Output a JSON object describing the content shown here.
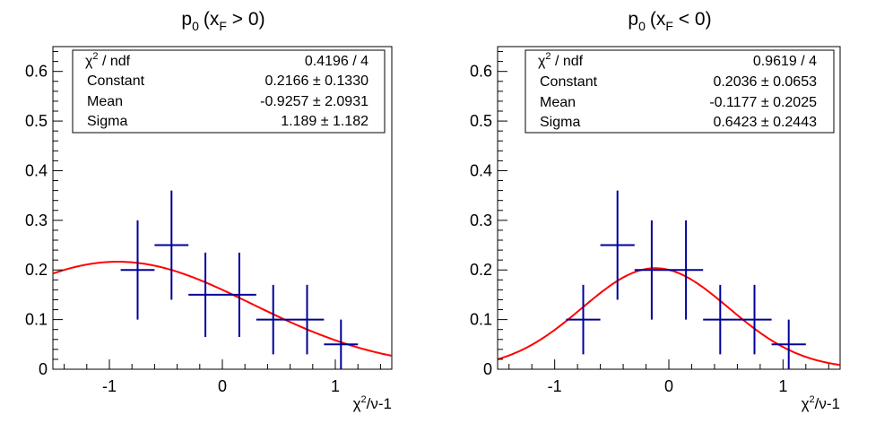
{
  "chart_data": [
    {
      "type": "scatter",
      "title": "p_0 (x_F > 0)",
      "title_main": "p",
      "title_sub": "0",
      "title_open": "(x",
      "title_sub2": "F",
      "title_close": " > 0)",
      "xlabel": "χ²/ν-1",
      "xlabel_main": "χ",
      "xlabel_sup": "2",
      "xlabel_rest": "/ν-1",
      "ylabel": "",
      "xlim": [
        -1.5,
        1.5
      ],
      "ylim": [
        0,
        0.65
      ],
      "x_ticks": [
        -1,
        0,
        1
      ],
      "x_tick_labels": [
        "-1",
        "0",
        "1"
      ],
      "y_ticks": [
        0,
        0.1,
        0.2,
        0.3,
        0.4,
        0.5,
        0.6
      ],
      "y_tick_labels": [
        "0",
        "0.1",
        "0.2",
        "0.3",
        "0.4",
        "0.5",
        "0.6"
      ],
      "grid": false,
      "points": [
        {
          "x": -0.75,
          "y": 0.2,
          "xerr": 0.15,
          "yerr": 0.1
        },
        {
          "x": -0.45,
          "y": 0.25,
          "xerr": 0.15,
          "yerr": 0.11
        },
        {
          "x": -0.15,
          "y": 0.15,
          "xerr": 0.15,
          "yerr": 0.085
        },
        {
          "x": 0.15,
          "y": 0.15,
          "xerr": 0.15,
          "yerr": 0.085
        },
        {
          "x": 0.45,
          "y": 0.1,
          "xerr": 0.15,
          "yerr": 0.07
        },
        {
          "x": 0.75,
          "y": 0.1,
          "xerr": 0.15,
          "yerr": 0.07
        },
        {
          "x": 1.05,
          "y": 0.05,
          "xerr": 0.15,
          "yerr": 0.05
        }
      ],
      "point_color": "#000099",
      "fit": {
        "function": "gaus",
        "constant": 0.2166,
        "mean": -0.9257,
        "sigma": 1.189,
        "color": "#ff0000"
      },
      "stats": {
        "legend_position": "top",
        "rows": [
          {
            "label": "χ² / ndf",
            "label_main": "χ",
            "label_sup": "2",
            "label_rest": " / ndf",
            "value": "0.4196 / 4"
          },
          {
            "label": "Constant",
            "value": "0.2166 ± 0.1330"
          },
          {
            "label": "Mean",
            "value": "-0.9257 ± 2.0931"
          },
          {
            "label": "Sigma",
            "value": "1.189 ± 1.182"
          }
        ]
      }
    },
    {
      "type": "scatter",
      "title": "p_0 (x_F < 0)",
      "title_main": "p",
      "title_sub": "0",
      "title_open": "(x",
      "title_sub2": "F",
      "title_close": " < 0)",
      "xlabel": "χ²/ν-1",
      "xlabel_main": "χ",
      "xlabel_sup": "2",
      "xlabel_rest": "/ν-1",
      "ylabel": "",
      "xlim": [
        -1.5,
        1.5
      ],
      "ylim": [
        0,
        0.65
      ],
      "x_ticks": [
        -1,
        0,
        1
      ],
      "x_tick_labels": [
        "-1",
        "0",
        "1"
      ],
      "y_ticks": [
        0,
        0.1,
        0.2,
        0.3,
        0.4,
        0.5,
        0.6
      ],
      "y_tick_labels": [
        "0",
        "0.1",
        "0.2",
        "0.3",
        "0.4",
        "0.5",
        "0.6"
      ],
      "grid": false,
      "points": [
        {
          "x": -0.75,
          "y": 0.1,
          "xerr": 0.15,
          "yerr": 0.07
        },
        {
          "x": -0.45,
          "y": 0.25,
          "xerr": 0.15,
          "yerr": 0.11
        },
        {
          "x": -0.15,
          "y": 0.2,
          "xerr": 0.15,
          "yerr": 0.1
        },
        {
          "x": 0.15,
          "y": 0.2,
          "xerr": 0.15,
          "yerr": 0.1
        },
        {
          "x": 0.45,
          "y": 0.1,
          "xerr": 0.15,
          "yerr": 0.07
        },
        {
          "x": 0.75,
          "y": 0.1,
          "xerr": 0.15,
          "yerr": 0.07
        },
        {
          "x": 1.05,
          "y": 0.05,
          "xerr": 0.15,
          "yerr": 0.05
        }
      ],
      "point_color": "#000099",
      "fit": {
        "function": "gaus",
        "constant": 0.2036,
        "mean": -0.1177,
        "sigma": 0.6423,
        "color": "#ff0000"
      },
      "stats": {
        "legend_position": "top",
        "rows": [
          {
            "label": "χ² / ndf",
            "label_main": "χ",
            "label_sup": "2",
            "label_rest": " / ndf",
            "value": "0.9619 / 4"
          },
          {
            "label": "Constant",
            "value": "0.2036 ± 0.0653"
          },
          {
            "label": "Mean",
            "value": "-0.1177 ± 0.2025"
          },
          {
            "label": "Sigma",
            "value": "0.6423 ± 0.2443"
          }
        ]
      }
    }
  ]
}
